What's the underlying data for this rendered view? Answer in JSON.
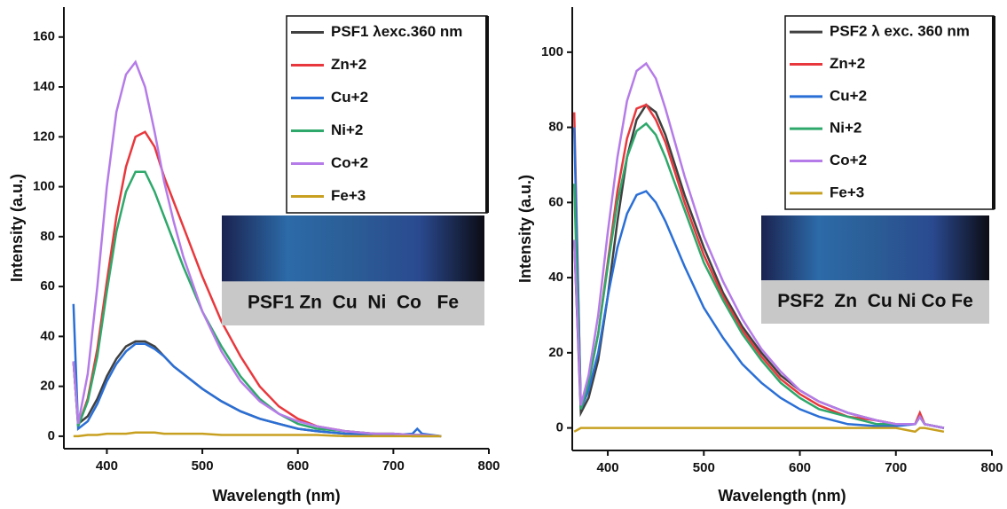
{
  "chart_data": [
    {
      "type": "line",
      "ylabel": "Intensity (a.u.)",
      "xlabel": "Wavelength (nm)",
      "xlim": [
        355,
        800
      ],
      "xticks": [
        400,
        500,
        600,
        700,
        800
      ],
      "ylim": [
        -5,
        172
      ],
      "yticks": [
        0,
        20,
        40,
        60,
        80,
        100,
        120,
        140,
        160
      ],
      "x": [
        365,
        370,
        380,
        390,
        400,
        410,
        420,
        430,
        440,
        450,
        460,
        470,
        480,
        500,
        520,
        540,
        560,
        580,
        600,
        620,
        650,
        680,
        700,
        720,
        725,
        730,
        750
      ],
      "series": [
        {
          "name": "PSF1 λexc.360 nm",
          "color": "#404040",
          "values": [
            30,
            5,
            8,
            15,
            24,
            31,
            36,
            38,
            38,
            36,
            32,
            28,
            25,
            19,
            14,
            10,
            7,
            5,
            3,
            2,
            1,
            1,
            0.5,
            0,
            0,
            0,
            0
          ]
        },
        {
          "name": "Zn+2",
          "color": "#e8383d",
          "values": [
            30,
            4,
            15,
            35,
            62,
            88,
            108,
            120,
            122,
            116,
            104,
            94,
            84,
            64,
            46,
            32,
            20,
            12,
            7,
            4,
            2,
            1,
            1,
            0.5,
            0.5,
            0.5,
            0
          ]
        },
        {
          "name": "Cu+2",
          "color": "#2a6fd6",
          "values": [
            53,
            3,
            6,
            13,
            22,
            29,
            34,
            37,
            37,
            35,
            32,
            28,
            25,
            19,
            14,
            10,
            7,
            5,
            3,
            2,
            1,
            0.5,
            0.5,
            1,
            3,
            1,
            0
          ]
        },
        {
          "name": "Ni+2",
          "color": "#2ea86b",
          "values": [
            30,
            4,
            14,
            32,
            58,
            82,
            98,
            106,
            106,
            98,
            88,
            78,
            68,
            50,
            36,
            24,
            15,
            9,
            5,
            3,
            2,
            1,
            1,
            0.5,
            0.5,
            0.5,
            0
          ]
        },
        {
          "name": "Co+2",
          "color": "#b57be8",
          "values": [
            30,
            5,
            25,
            60,
            100,
            130,
            145,
            150,
            140,
            122,
            102,
            86,
            72,
            50,
            34,
            22,
            14,
            9,
            6,
            4,
            2,
            1,
            1,
            0.5,
            0.5,
            0.5,
            0
          ]
        },
        {
          "name": "Fe+3",
          "color": "#c8a020",
          "values": [
            0,
            0,
            0.5,
            0.5,
            1,
            1,
            1,
            1.5,
            1.5,
            1.5,
            1,
            1,
            1,
            1,
            0.5,
            0.5,
            0.5,
            0.5,
            0.5,
            0.5,
            0,
            0,
            0,
            0,
            0,
            0,
            0
          ]
        }
      ],
      "annotation": "PSF1 Zn  Cu  Ni  Co   Fe"
    },
    {
      "type": "line",
      "ylabel": "Intensity (a.u.)",
      "xlabel": "Wavelength (nm)",
      "xlim": [
        363,
        800
      ],
      "xticks": [
        400,
        500,
        600,
        700,
        800
      ],
      "ylim": [
        -6,
        112
      ],
      "yticks": [
        0,
        20,
        40,
        60,
        80,
        100
      ],
      "x": [
        365,
        372,
        380,
        390,
        400,
        410,
        420,
        430,
        440,
        450,
        460,
        470,
        480,
        500,
        520,
        540,
        560,
        580,
        600,
        620,
        650,
        680,
        700,
        720,
        725,
        730,
        750
      ],
      "series": [
        {
          "name": "PSF2 λ exc. 360 nm",
          "color": "#404040",
          "values": [
            50,
            4,
            8,
            18,
            35,
            55,
            72,
            82,
            86,
            84,
            78,
            70,
            62,
            48,
            36,
            27,
            20,
            14,
            10,
            7,
            4,
            2,
            1,
            1,
            3,
            1,
            0
          ]
        },
        {
          "name": "Zn+2",
          "color": "#e8383d",
          "values": [
            84,
            5,
            12,
            25,
            44,
            63,
            77,
            85,
            86,
            82,
            76,
            68,
            60,
            46,
            35,
            26,
            19,
            13,
            9,
            6,
            3,
            2,
            1,
            1,
            4,
            1,
            0
          ]
        },
        {
          "name": "Cu+2",
          "color": "#2a6fd6",
          "values": [
            80,
            5,
            10,
            20,
            35,
            48,
            57,
            62,
            63,
            60,
            55,
            49,
            43,
            32,
            24,
            17,
            12,
            8,
            5,
            3,
            1,
            0.5,
            0.5,
            1,
            3,
            1,
            0
          ]
        },
        {
          "name": "Ni+2",
          "color": "#2ea86b",
          "values": [
            65,
            5,
            12,
            25,
            43,
            60,
            72,
            79,
            81,
            78,
            72,
            65,
            58,
            44,
            34,
            25,
            18,
            12,
            8,
            5,
            3,
            1,
            1,
            1,
            3,
            1,
            0
          ]
        },
        {
          "name": "Co+2",
          "color": "#b57be8",
          "values": [
            50,
            6,
            14,
            30,
            52,
            72,
            87,
            95,
            97,
            93,
            85,
            76,
            67,
            51,
            39,
            29,
            21,
            15,
            10,
            7,
            4,
            2,
            1,
            1,
            3,
            1,
            0
          ]
        },
        {
          "name": "Fe+3",
          "color": "#c8a020",
          "values": [
            -1,
            0,
            0,
            0,
            0,
            0,
            0,
            0,
            0,
            0,
            0,
            0,
            0,
            0,
            0,
            0,
            0,
            0,
            0,
            0,
            0,
            0,
            0,
            -1,
            0,
            0,
            -1
          ]
        }
      ],
      "annotation": "PSF2  Zn  Cu Ni Co Fe"
    }
  ]
}
